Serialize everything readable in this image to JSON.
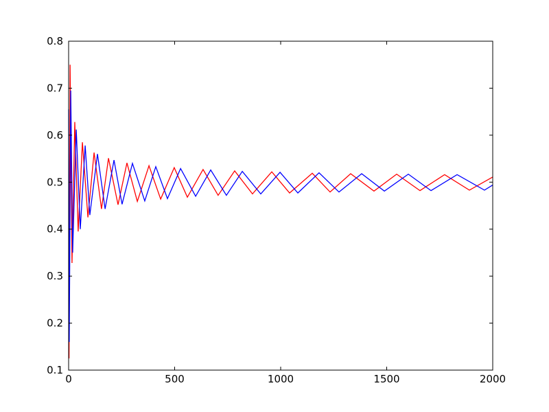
{
  "chart_data": {
    "type": "line",
    "xlim": [
      0,
      2000
    ],
    "xticks": [
      0,
      500,
      1000,
      1500,
      2000
    ],
    "ylim": [
      0.1,
      0.8
    ],
    "yticks": [
      0.1,
      0.2,
      0.3,
      0.4,
      0.5,
      0.6,
      0.7,
      0.8
    ],
    "series": [
      {
        "color": "#ff0000",
        "x": [
          2,
          7,
          16,
          29,
          45,
          65,
          91,
          120,
          155,
          188,
          233,
          275,
          324,
          379,
          434,
          498,
          560,
          634,
          705,
          783,
          867,
          958,
          1042,
          1149,
          1233,
          1330,
          1440,
          1547,
          1657,
          1773,
          1890,
          2000
        ],
        "values": [
          0.125,
          0.75,
          0.328,
          0.628,
          0.395,
          0.585,
          0.425,
          0.563,
          0.443,
          0.551,
          0.452,
          0.541,
          0.459,
          0.535,
          0.464,
          0.531,
          0.468,
          0.527,
          0.472,
          0.524,
          0.475,
          0.522,
          0.477,
          0.519,
          0.479,
          0.518,
          0.481,
          0.517,
          0.482,
          0.516,
          0.483,
          0.511
        ]
      },
      {
        "color": "#0000ff",
        "x": [
          0,
          3,
          10,
          19,
          36,
          55,
          78,
          100,
          136,
          172,
          214,
          252,
          301,
          359,
          411,
          466,
          528,
          599,
          670,
          744,
          819,
          906,
          997,
          1081,
          1181,
          1275,
          1382,
          1489,
          1602,
          1709,
          1832,
          1961,
          2000
        ],
        "values": [
          0.655,
          0.16,
          0.695,
          0.35,
          0.612,
          0.4,
          0.578,
          0.43,
          0.56,
          0.443,
          0.547,
          0.453,
          0.54,
          0.46,
          0.533,
          0.465,
          0.529,
          0.47,
          0.526,
          0.472,
          0.523,
          0.475,
          0.521,
          0.477,
          0.52,
          0.479,
          0.518,
          0.481,
          0.517,
          0.482,
          0.516,
          0.483,
          0.494
        ]
      }
    ]
  }
}
